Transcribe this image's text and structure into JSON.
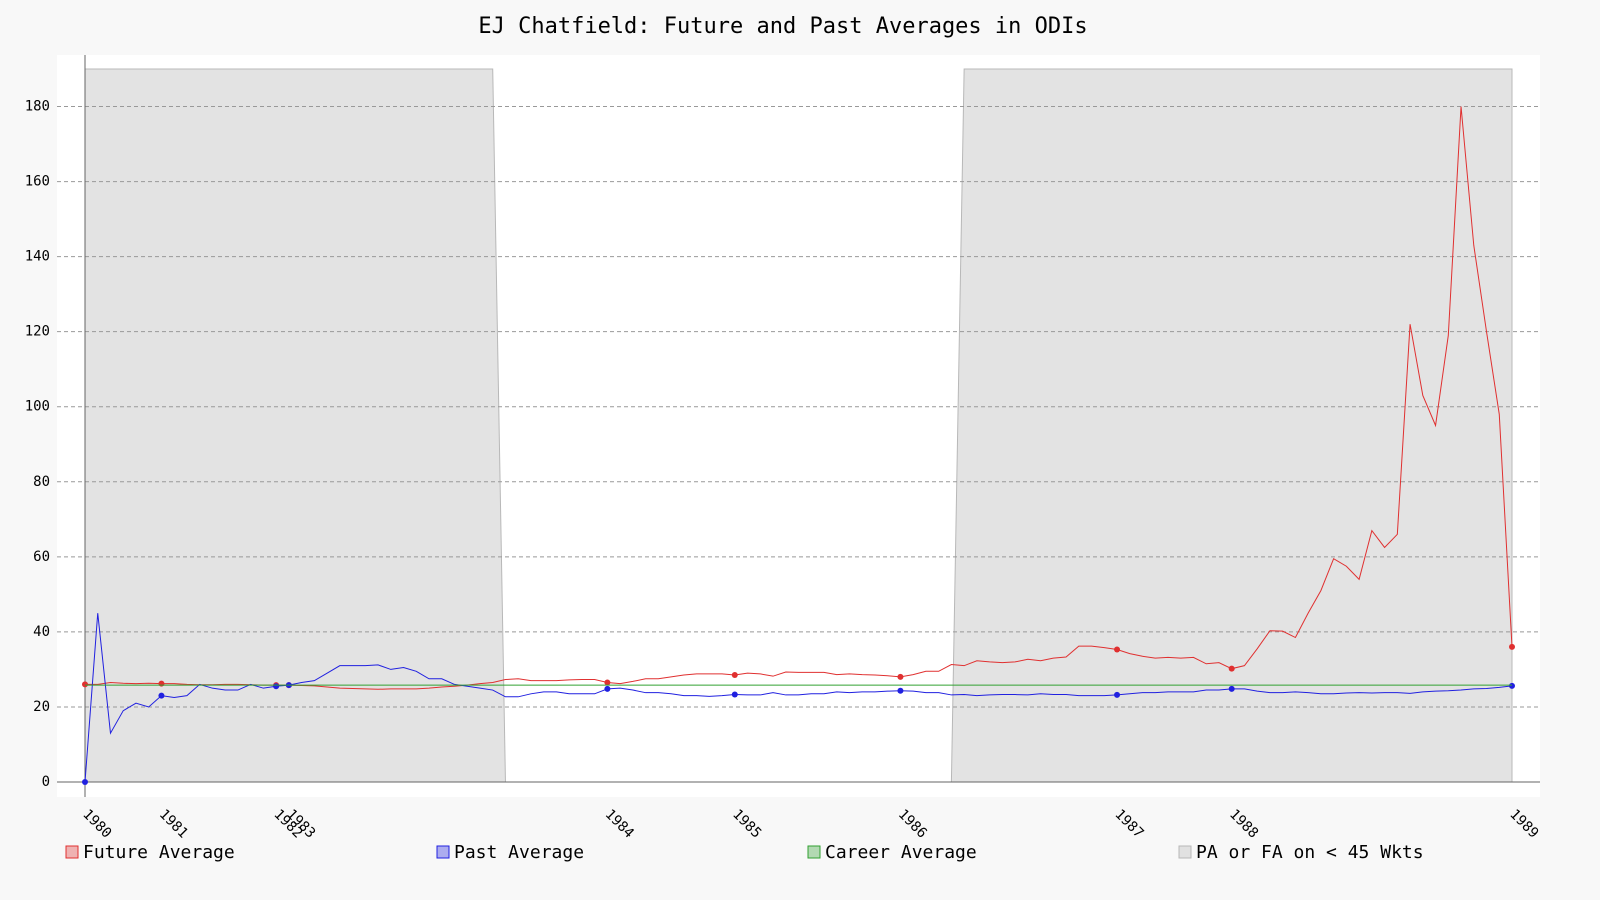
{
  "chart_data": {
    "type": "line",
    "title": "EJ Chatfield: Future and Past Averages in ODIs",
    "categories": [
      "1980",
      null,
      null,
      null,
      null,
      null,
      "1981",
      null,
      null,
      null,
      null,
      null,
      null,
      null,
      null,
      "1982",
      "1983",
      null,
      null,
      null,
      null,
      null,
      null,
      null,
      null,
      null,
      null,
      null,
      null,
      null,
      null,
      null,
      null,
      null,
      null,
      null,
      null,
      null,
      null,
      null,
      null,
      "1984",
      null,
      null,
      null,
      null,
      null,
      null,
      null,
      null,
      null,
      "1985",
      null,
      null,
      null,
      null,
      null,
      null,
      null,
      null,
      null,
      null,
      null,
      null,
      "1986",
      null,
      null,
      null,
      null,
      null,
      null,
      null,
      null,
      null,
      null,
      null,
      null,
      null,
      null,
      null,
      null,
      "1987",
      null,
      null,
      null,
      null,
      null,
      null,
      null,
      null,
      "1988",
      null,
      null,
      null,
      null,
      null,
      null,
      null,
      null,
      null,
      null,
      null,
      null,
      null,
      null,
      null,
      null,
      null,
      null,
      null,
      null,
      null,
      "1989"
    ],
    "series": [
      {
        "name": "Future Average",
        "color": "#e03030",
        "values": [
          26,
          26,
          26.5,
          26.3,
          26.2,
          26.3,
          26.2,
          26.2,
          26,
          25.9,
          25.9,
          26,
          26,
          25.9,
          25.8,
          25.8,
          25.8,
          25.7,
          25.6,
          25.3,
          25,
          24.9,
          24.8,
          24.7,
          24.8,
          24.8,
          24.8,
          25,
          25.3,
          25.5,
          25.8,
          26.2,
          26.5,
          27.3,
          27.5,
          27,
          27,
          27,
          27.2,
          27.3,
          27.3,
          26.5,
          26.2,
          26.8,
          27.5,
          27.5,
          28,
          28.5,
          28.8,
          28.8,
          28.8,
          28.5,
          29,
          28.8,
          28.2,
          29.3,
          29.2,
          29.2,
          29.2,
          28.6,
          28.8,
          28.6,
          28.5,
          28.3,
          28,
          28.6,
          29.5,
          29.5,
          31.3,
          31,
          32.3,
          32,
          31.8,
          32,
          32.7,
          32.3,
          33,
          33.3,
          36.2,
          36.2,
          35.8,
          35.3,
          34.2,
          33.5,
          33,
          33.2,
          33,
          33.2,
          31.5,
          31.8,
          30.2,
          31,
          35.5,
          40.3,
          40.2,
          38.5,
          45,
          51,
          59.5,
          57.5,
          54,
          67,
          62.5,
          66,
          122,
          103,
          95,
          119,
          180,
          143,
          120,
          98,
          36
        ]
      },
      {
        "name": "Past Average",
        "color": "#2020e0",
        "values": [
          0,
          45,
          13,
          19,
          21,
          20,
          23,
          22.5,
          23,
          26,
          25,
          24.5,
          24.5,
          26,
          25,
          25.5,
          25.8,
          26.5,
          27,
          29,
          31,
          31,
          31,
          31.2,
          30,
          30.5,
          29.5,
          27.5,
          27.5,
          26,
          25.5,
          25,
          24.5,
          22.7,
          22.7,
          23.5,
          24,
          24,
          23.5,
          23.5,
          23.5,
          24.8,
          25,
          24.5,
          23.8,
          23.8,
          23.5,
          23,
          23,
          22.8,
          23,
          23.3,
          23.2,
          23.2,
          23.8,
          23.2,
          23.2,
          23.5,
          23.5,
          24,
          23.8,
          24,
          24,
          24.2,
          24.3,
          24.2,
          23.8,
          23.8,
          23.2,
          23.3,
          23,
          23.2,
          23.3,
          23.3,
          23.2,
          23.5,
          23.3,
          23.3,
          23,
          23,
          23,
          23.2,
          23.5,
          23.8,
          23.8,
          24,
          24,
          24,
          24.5,
          24.5,
          24.8,
          24.8,
          24.2,
          23.8,
          23.8,
          24,
          23.8,
          23.5,
          23.5,
          23.7,
          23.8,
          23.7,
          23.8,
          23.8,
          23.6,
          24,
          24.2,
          24.3,
          24.5,
          24.8,
          24.9,
          25.2,
          25.6
        ]
      },
      {
        "name": "Career Average",
        "color": "#30a030",
        "values": [
          25.8,
          25.8,
          25.8,
          25.8,
          25.8,
          25.8,
          25.8,
          25.8,
          25.8,
          25.8,
          25.8,
          25.8,
          25.8,
          25.8,
          25.8,
          25.8,
          25.8,
          25.8,
          25.8,
          25.8,
          25.8,
          25.8,
          25.8,
          25.8,
          25.8,
          25.8,
          25.8,
          25.8,
          25.8,
          25.8,
          25.8,
          25.8,
          25.8,
          25.8,
          25.8,
          25.8,
          25.8,
          25.8,
          25.8,
          25.8,
          25.8,
          25.8,
          25.8,
          25.8,
          25.8,
          25.8,
          25.8,
          25.8,
          25.8,
          25.8,
          25.8,
          25.8,
          25.8,
          25.8,
          25.8,
          25.8,
          25.8,
          25.8,
          25.8,
          25.8,
          25.8,
          25.8,
          25.8,
          25.8,
          25.8,
          25.8,
          25.8,
          25.8,
          25.8,
          25.8,
          25.8,
          25.8,
          25.8,
          25.8,
          25.8,
          25.8,
          25.8,
          25.8,
          25.8,
          25.8,
          25.8,
          25.8,
          25.8,
          25.8,
          25.8,
          25.8,
          25.8,
          25.8,
          25.8,
          25.8,
          25.8,
          25.8,
          25.8,
          25.8,
          25.8,
          25.8,
          25.8,
          25.8,
          25.8,
          25.8,
          25.8,
          25.8,
          25.8,
          25.8,
          25.8,
          25.8,
          25.8,
          25.8,
          25.8,
          25.8,
          25.8,
          25.8,
          25.8
        ]
      },
      {
        "name": "PA or FA on < 45 Wkts",
        "color": "#b8b8b8",
        "fill": true,
        "values": [
          190,
          190,
          190,
          190,
          190,
          190,
          190,
          190,
          190,
          190,
          190,
          190,
          190,
          190,
          190,
          190,
          190,
          190,
          190,
          190,
          190,
          190,
          190,
          190,
          190,
          190,
          190,
          190,
          190,
          190,
          190,
          190,
          190,
          0,
          0,
          0,
          0,
          0,
          0,
          0,
          0,
          0,
          0,
          0,
          0,
          0,
          0,
          0,
          0,
          0,
          0,
          0,
          0,
          0,
          0,
          0,
          0,
          0,
          0,
          0,
          0,
          0,
          0,
          0,
          0,
          0,
          0,
          0,
          0,
          190,
          190,
          190,
          190,
          190,
          190,
          190,
          190,
          190,
          190,
          190,
          190,
          190,
          190,
          190,
          190,
          190,
          190,
          190,
          190,
          190,
          190,
          190,
          190,
          190,
          190,
          190,
          190,
          190,
          190,
          190,
          190,
          190,
          190,
          190,
          190,
          190,
          190,
          190,
          190,
          190,
          190,
          190,
          190
        ]
      }
    ],
    "ylim": [
      -4,
      190
    ],
    "yticks": [
      0,
      20,
      40,
      60,
      80,
      100,
      120,
      140,
      160,
      180
    ],
    "grid": true
  }
}
